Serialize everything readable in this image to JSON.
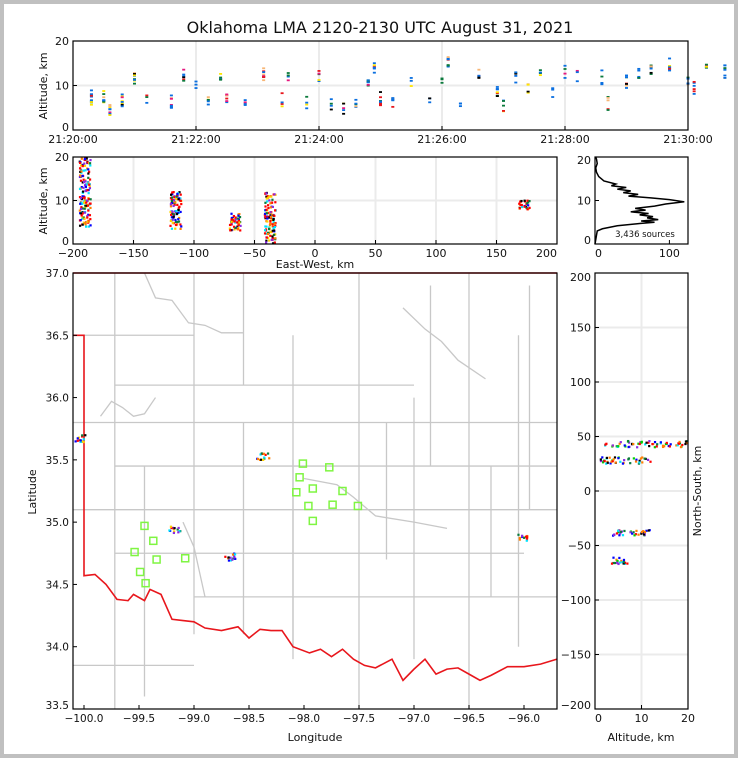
{
  "title": "Oklahoma LMA 2120-2130 UTC August 31, 2021",
  "colors": {
    "state_border": "#e8161c",
    "county_lines": "#c8c8c8",
    "stations": "#7ff542",
    "grid": "#ebebeb"
  },
  "chart_data": [
    {
      "id": "time_height",
      "type": "scatter",
      "title": "",
      "xlabel": "",
      "ylabel": "Altitude, km",
      "xlim": [
        "21:20:00",
        "21:30:00"
      ],
      "ylim": [
        0,
        20
      ],
      "xticks": [
        "21:20:00",
        "21:22:00",
        "21:24:00",
        "21:26:00",
        "21:28:00",
        "21:30:00"
      ],
      "yticks": [
        "0",
        "10",
        "20"
      ],
      "grid": true,
      "series": [
        {
          "name": "sources",
          "points": [
            [
              0.3,
              6.5
            ],
            [
              0.3,
              7.5
            ],
            [
              0.5,
              7.2
            ],
            [
              0.6,
              4.8
            ],
            [
              0.8,
              6.5
            ],
            [
              1.0,
              12
            ],
            [
              1.2,
              6.2
            ],
            [
              1.6,
              6.5
            ],
            [
              1.8,
              12.5
            ],
            [
              2.0,
              10.5
            ],
            [
              2.2,
              6.0
            ],
            [
              2.4,
              12.8
            ],
            [
              2.5,
              6.5
            ],
            [
              2.8,
              5.8
            ],
            [
              3.1,
              12.3
            ],
            [
              3.4,
              6.8
            ],
            [
              3.5,
              11.5
            ],
            [
              3.8,
              6.2
            ],
            [
              4.0,
              12.5
            ],
            [
              4.2,
              5.8
            ],
            [
              4.4,
              4.5
            ],
            [
              4.6,
              6.5
            ],
            [
              4.8,
              10.5
            ],
            [
              4.9,
              14.2
            ],
            [
              5.0,
              7.0
            ],
            [
              5.2,
              6.8
            ],
            [
              5.5,
              10.5
            ],
            [
              5.8,
              6.0
            ],
            [
              6.0,
              12.0
            ],
            [
              6.1,
              15.8
            ],
            [
              6.3,
              6.5
            ],
            [
              6.6,
              12.3
            ],
            [
              6.9,
              8.5
            ],
            [
              7.0,
              5.8
            ],
            [
              7.2,
              12.0
            ],
            [
              7.4,
              9.0
            ],
            [
              7.6,
              12.5
            ],
            [
              7.8,
              9.0
            ],
            [
              8.0,
              13.0
            ],
            [
              8.2,
              12.5
            ],
            [
              8.6,
              11.8
            ],
            [
              8.7,
              6.0
            ],
            [
              9.0,
              11.0
            ],
            [
              9.2,
              12.3
            ],
            [
              9.4,
              13.5
            ],
            [
              9.7,
              14.5
            ],
            [
              10.0,
              11.5
            ],
            [
              10.1,
              9.5
            ],
            [
              10.3,
              13.5
            ],
            [
              10.6,
              13.0
            ],
            [
              10.8,
              8.5
            ],
            [
              11.0,
              11.5
            ],
            [
              11.2,
              10.5
            ],
            [
              11.6,
              9.0
            ],
            [
              11.9,
              11.0
            ],
            [
              12.0,
              6.5
            ],
            [
              12.4,
              13.5
            ],
            [
              12.8,
              9.0
            ],
            [
              13.0,
              10.0
            ],
            [
              13.1,
              6.5
            ],
            [
              13.5,
              13.5
            ],
            [
              13.8,
              11.0
            ],
            [
              14.0,
              8.5
            ],
            [
              14.2,
              7.5
            ],
            [
              14.6,
              8.0
            ],
            [
              14.8,
              12.5
            ],
            [
              15.0,
              8.0
            ],
            [
              15.2,
              6.0
            ],
            [
              15.4,
              9.0
            ],
            [
              15.6,
              10.0
            ],
            [
              15.8,
              12.5
            ],
            [
              16.0,
              9.0
            ],
            [
              16.2,
              7.5
            ],
            [
              16.5,
              8.5
            ],
            [
              16.7,
              15.5
            ],
            [
              16.9,
              9.5
            ],
            [
              17.0,
              12.0
            ],
            [
              17.3,
              10.0
            ],
            [
              17.5,
              9.0
            ],
            [
              17.8,
              8.0
            ],
            [
              18.0,
              10.5
            ],
            [
              18.2,
              9.5
            ],
            [
              18.5,
              7.5
            ],
            [
              18.8,
              11.5
            ],
            [
              19.0,
              9.5
            ],
            [
              19.1,
              5.5
            ],
            [
              19.4,
              10.0
            ],
            [
              19.7,
              8.5
            ],
            [
              20.0,
              11.0
            ]
          ]
        }
      ]
    },
    {
      "id": "east_west_altitude",
      "type": "scatter",
      "xlabel": "East-West, km",
      "ylabel": "Altitude, km",
      "xlim": [
        -200,
        200
      ],
      "ylim": [
        0,
        20
      ],
      "xticks": [
        "−200",
        "−150",
        "−100",
        "−50",
        "0",
        "50",
        "100",
        "150",
        "200"
      ],
      "yticks": [
        "0",
        "10",
        "20"
      ],
      "grid": true,
      "clusters": [
        {
          "x_km": -190,
          "alt_range_km": [
            4,
            20
          ]
        },
        {
          "x_km": -115,
          "alt_range_km": [
            3.5,
            12
          ]
        },
        {
          "x_km": -66,
          "alt_range_km": [
            3,
            7
          ]
        },
        {
          "x_km": -37,
          "alt_range_km": [
            0,
            12
          ]
        },
        {
          "x_km": 173,
          "alt_range_km": [
            8,
            10
          ]
        }
      ]
    },
    {
      "id": "altitude_histogram",
      "type": "line",
      "xlabel": "",
      "ylabel": "",
      "xlim": [
        0,
        125
      ],
      "ylim": [
        0,
        20
      ],
      "xticks": [
        "0",
        "100"
      ],
      "yticks": [
        "0",
        "10",
        "20"
      ],
      "annotation": "3,436 sources",
      "series": [
        {
          "name": "count_by_altitude",
          "points": [
            [
              0,
              0
            ],
            [
              2,
              2
            ],
            [
              3,
              3
            ],
            [
              10,
              3.5
            ],
            [
              30,
              4.2
            ],
            [
              60,
              4.7
            ],
            [
              80,
              5.0
            ],
            [
              62,
              5.3
            ],
            [
              85,
              5.6
            ],
            [
              70,
              6.0
            ],
            [
              78,
              6.3
            ],
            [
              60,
              6.7
            ],
            [
              72,
              7.0
            ],
            [
              48,
              7.4
            ],
            [
              68,
              7.8
            ],
            [
              54,
              8.2
            ],
            [
              80,
              8.7
            ],
            [
              95,
              9.2
            ],
            [
              120,
              9.7
            ],
            [
              100,
              10.2
            ],
            [
              75,
              10.6
            ],
            [
              45,
              11.0
            ],
            [
              58,
              11.4
            ],
            [
              38,
              11.8
            ],
            [
              48,
              12.2
            ],
            [
              30,
              12.6
            ],
            [
              42,
              13.0
            ],
            [
              22,
              13.4
            ],
            [
              28,
              13.8
            ],
            [
              12,
              14.5
            ],
            [
              5,
              15.5
            ],
            [
              2,
              16.5
            ],
            [
              1,
              17.5
            ],
            [
              3,
              18.5
            ],
            [
              2,
              19.5
            ],
            [
              1,
              20
            ]
          ]
        }
      ]
    },
    {
      "id": "plan_view_map",
      "type": "scatter",
      "xlabel": "Longitude",
      "ylabel": "Latitude",
      "xlim": [
        -100.1,
        -95.7
      ],
      "ylim": [
        33.5,
        37.0
      ],
      "xticks": [
        "−100.0",
        "−99.5",
        "−99.0",
        "−98.5",
        "−98.0",
        "−97.5",
        "−97.0",
        "−96.5",
        "−96.0"
      ],
      "yticks": [
        "33.5",
        "34.0",
        "34.5",
        "35.0",
        "35.5",
        "36.0",
        "36.5",
        "37.0"
      ],
      "grid": false,
      "stations": [
        [
          -99.45,
          34.97
        ],
        [
          -99.37,
          34.85
        ],
        [
          -99.54,
          34.76
        ],
        [
          -99.34,
          34.7
        ],
        [
          -99.08,
          34.71
        ],
        [
          -99.49,
          34.6
        ],
        [
          -99.44,
          34.51
        ],
        [
          -98.01,
          35.47
        ],
        [
          -97.77,
          35.44
        ],
        [
          -98.04,
          35.36
        ],
        [
          -97.92,
          35.27
        ],
        [
          -97.65,
          35.25
        ],
        [
          -98.07,
          35.24
        ],
        [
          -97.96,
          35.13
        ],
        [
          -97.74,
          35.14
        ],
        [
          -97.51,
          35.13
        ],
        [
          -97.92,
          35.01
        ]
      ],
      "source_clusters": [
        {
          "lon": -100.04,
          "lat": 35.67
        },
        {
          "lon": -98.37,
          "lat": 35.53
        },
        {
          "lon": -99.17,
          "lat": 34.94
        },
        {
          "lon": -98.66,
          "lat": 34.72
        },
        {
          "lon": -96.0,
          "lat": 34.88
        }
      ]
    },
    {
      "id": "north_south_altitude",
      "type": "scatter",
      "xlabel": "Altitude, km",
      "ylabel": "North-South, km",
      "xlim": [
        0,
        20
      ],
      "ylim": [
        -200,
        200
      ],
      "xticks": [
        "0",
        "10",
        "20"
      ],
      "yticks": [
        "−200",
        "−150",
        "−100",
        "−50",
        "0",
        "50",
        "100",
        "150",
        "200"
      ],
      "grid": true,
      "clusters": [
        {
          "ns_km": 43,
          "alt_range_km": [
            2,
            20
          ]
        },
        {
          "ns_km": 28,
          "alt_range_km": [
            1,
            12
          ]
        },
        {
          "ns_km": -38,
          "alt_range_km": [
            3.5,
            12
          ]
        },
        {
          "ns_km": -64,
          "alt_range_km": [
            3.5,
            7
          ]
        }
      ]
    }
  ]
}
